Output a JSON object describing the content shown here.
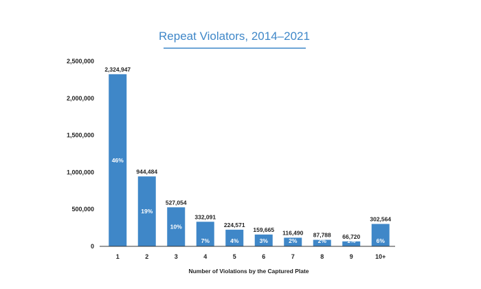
{
  "chart_data": {
    "type": "bar",
    "title": "Repeat Violators, 2014–2021",
    "xlabel": "Number of Violations by the Captured Plate",
    "ylabel": "",
    "categories": [
      "1",
      "2",
      "3",
      "4",
      "5",
      "6",
      "7",
      "8",
      "9",
      "10+"
    ],
    "values": [
      2324947,
      944484,
      527054,
      332091,
      224571,
      159665,
      116490,
      87788,
      66720,
      302564
    ],
    "value_labels": [
      "2,324,947",
      "944,484",
      "527,054",
      "332,091",
      "224,571",
      "159,665",
      "116,490",
      "87,788",
      "66,720",
      "302,564"
    ],
    "percent_labels": [
      "46%",
      "19%",
      "10%",
      "7%",
      "4%",
      "3%",
      "2%",
      "2%",
      "1%",
      "6%"
    ],
    "ylim": [
      0,
      2500000
    ],
    "yticks": [
      0,
      500000,
      1000000,
      1500000,
      2000000,
      2500000
    ],
    "ytick_labels": [
      "0",
      "500,000",
      "1,000,000",
      "1,500,000",
      "2,000,000",
      "2,500,000"
    ],
    "grid": false,
    "legend": "none",
    "colors": {
      "bar": "#3f87c8",
      "title": "#3f87c8",
      "axis": "#333333"
    }
  }
}
